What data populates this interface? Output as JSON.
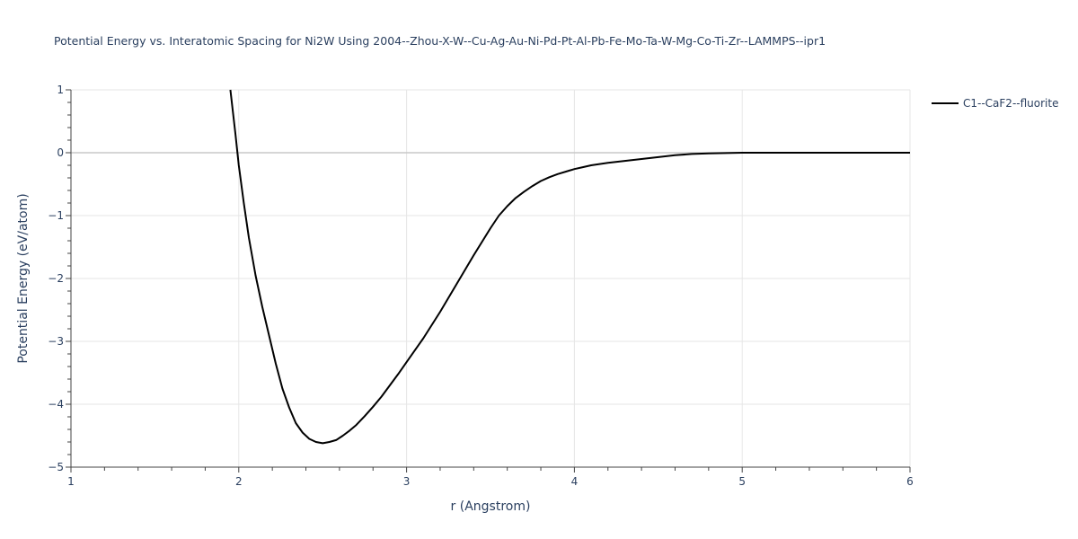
{
  "chart_data": {
    "type": "line",
    "title": "Potential Energy vs. Interatomic Spacing for Ni2W Using 2004--Zhou-X-W--Cu-Ag-Au-Ni-Pd-Pt-Al-Pb-Fe-Mo-Ta-W-Mg-Co-Ti-Zr--LAMMPS--ipr1",
    "xlabel": "r (Angstrom)",
    "ylabel": "Potential Energy (eV/atom)",
    "xlim": [
      1,
      6
    ],
    "ylim": [
      -5,
      1
    ],
    "xticks": [
      1,
      2,
      3,
      4,
      5,
      6
    ],
    "yticks": [
      -5,
      -4,
      -3,
      -2,
      -1,
      0,
      1
    ],
    "xtick_labels": [
      "1",
      "2",
      "3",
      "4",
      "5",
      "6"
    ],
    "ytick_labels": [
      "−5",
      "−4",
      "−3",
      "−2",
      "−1",
      "0",
      "1"
    ],
    "grid": true,
    "legend_position": "top-right outside",
    "series": [
      {
        "name": "C1--CaF2--fluorite",
        "color": "#000000",
        "x": [
          1.95,
          1.98,
          2.0,
          2.03,
          2.06,
          2.1,
          2.14,
          2.18,
          2.22,
          2.26,
          2.3,
          2.34,
          2.38,
          2.42,
          2.46,
          2.5,
          2.54,
          2.58,
          2.62,
          2.66,
          2.7,
          2.75,
          2.8,
          2.85,
          2.9,
          2.95,
          3.0,
          3.1,
          3.2,
          3.3,
          3.4,
          3.5,
          3.55,
          3.6,
          3.65,
          3.7,
          3.75,
          3.8,
          3.85,
          3.9,
          3.95,
          4.0,
          4.05,
          4.1,
          4.15,
          4.2,
          4.3,
          4.4,
          4.5,
          4.6,
          4.7,
          4.8,
          5.0,
          5.2,
          5.5,
          6.0
        ],
        "y": [
          1.0,
          0.3,
          -0.2,
          -0.8,
          -1.35,
          -1.95,
          -2.45,
          -2.9,
          -3.35,
          -3.75,
          -4.05,
          -4.3,
          -4.45,
          -4.55,
          -4.6,
          -4.62,
          -4.6,
          -4.57,
          -4.5,
          -4.42,
          -4.33,
          -4.19,
          -4.04,
          -3.88,
          -3.7,
          -3.52,
          -3.33,
          -2.95,
          -2.53,
          -2.08,
          -1.63,
          -1.2,
          -1.0,
          -0.85,
          -0.72,
          -0.62,
          -0.53,
          -0.45,
          -0.39,
          -0.34,
          -0.3,
          -0.26,
          -0.23,
          -0.2,
          -0.18,
          -0.16,
          -0.13,
          -0.1,
          -0.07,
          -0.04,
          -0.02,
          -0.01,
          0.0,
          0.0,
          0.0,
          0.0
        ]
      }
    ]
  }
}
